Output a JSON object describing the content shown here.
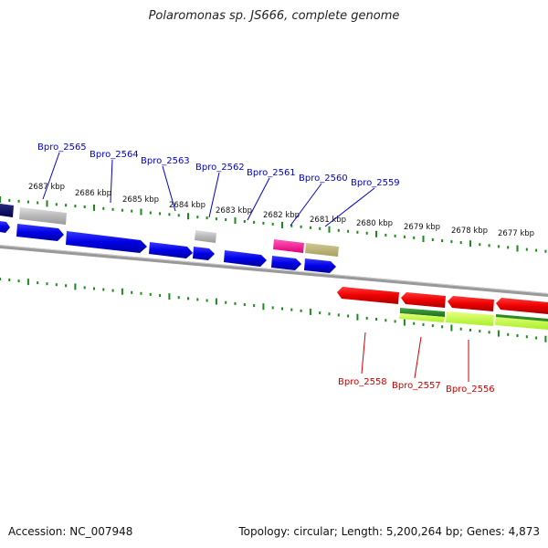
{
  "title": "Polaromonas sp. JS666, complete genome",
  "footer": {
    "accession": "Accession: NC_007948",
    "summary": "Topology: circular; Length: 5,200,264 bp; Genes: 4,873"
  },
  "colors": {
    "forward_label": "#0000cc",
    "reverse_label": "#cc0000",
    "tick": "#1a8a1a",
    "backbone": "#8a8a8a"
  },
  "ticks": [
    "2687 kbp",
    "2686 kbp",
    "2685 kbp",
    "2684 kbp",
    "2683 kbp",
    "2682 kbp",
    "2681 kbp",
    "2680 kbp",
    "2679 kbp",
    "2678 kbp",
    "2677 kbp"
  ],
  "gene_labels_forward": [
    "Bpro_2565",
    "Bpro_2564",
    "Bpro_2563",
    "Bpro_2562",
    "Bpro_2561",
    "Bpro_2560",
    "Bpro_2559"
  ],
  "gene_labels_reverse": [
    "Bpro_2558",
    "Bpro_2557",
    "Bpro_2556"
  ]
}
